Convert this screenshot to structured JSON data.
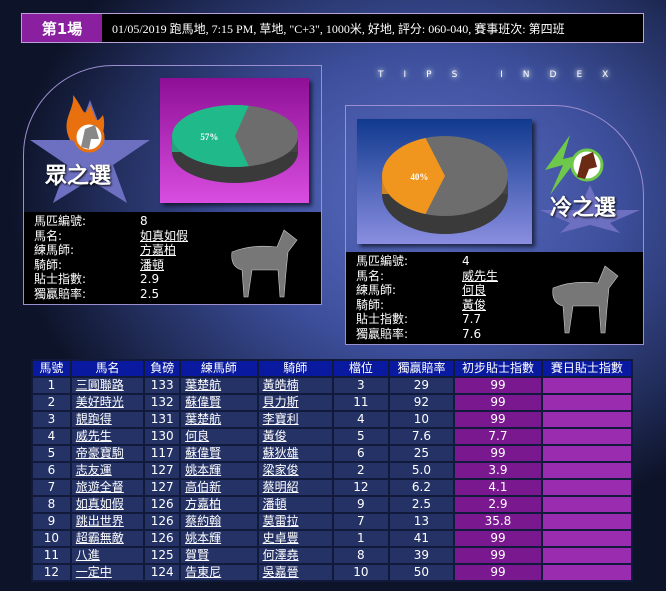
{
  "header": {
    "race": "第1場",
    "info": "01/05/2019 跑馬地, 7:15 PM, 草地, \"C+3\", 1000米, 好地, 評分: 060-040, 賽事班次: 第四班"
  },
  "tips_index": "TIPS INDEX",
  "public_pick": {
    "title": "眾之選",
    "percent_label": "57%",
    "percent": 57,
    "slice_color": "#1fb98a",
    "fields": [
      {
        "k": "馬匹編號:",
        "v": "8"
      },
      {
        "k": "馬名:",
        "v": "如真如假"
      },
      {
        "k": "練馬師:",
        "v": "方嘉柏"
      },
      {
        "k": "騎師:",
        "v": "潘頓"
      },
      {
        "k": "貼士指數:",
        "v": "2.9"
      },
      {
        "k": "獨贏賠率:",
        "v": "2.5"
      }
    ]
  },
  "longshot_pick": {
    "title": "冷之選",
    "percent_label": "40%",
    "percent": 40,
    "slice_color": "#f0961e",
    "fields": [
      {
        "k": "馬匹編號:",
        "v": "4"
      },
      {
        "k": "馬名:",
        "v": "威先生"
      },
      {
        "k": "練馬師:",
        "v": "何良"
      },
      {
        "k": "騎師:",
        "v": "黃俊"
      },
      {
        "k": "貼士指數:",
        "v": "7.7"
      },
      {
        "k": "獨贏賠率:",
        "v": "7.6"
      }
    ]
  },
  "table": {
    "headers": [
      "馬號",
      "馬名",
      "負磅",
      "練馬師",
      "騎師",
      "檔位",
      "獨贏賠率",
      "初步貼士指數",
      "賽日貼士指數"
    ],
    "rows": [
      [
        "1",
        "三圓聯路",
        "133",
        "葉楚航",
        "黃皓楠",
        "3",
        "29",
        "99",
        ""
      ],
      [
        "2",
        "美好時光",
        "132",
        "蘇偉賢",
        "貝力斯",
        "11",
        "92",
        "99",
        ""
      ],
      [
        "3",
        "靚跑得",
        "131",
        "葉楚航",
        "李寶利",
        "4",
        "10",
        "99",
        ""
      ],
      [
        "4",
        "威先生",
        "130",
        "何良",
        "黃俊",
        "5",
        "7.6",
        "7.7",
        ""
      ],
      [
        "5",
        "帝豪寶駒",
        "117",
        "蘇偉賢",
        "蘇狄雄",
        "6",
        "25",
        "99",
        ""
      ],
      [
        "6",
        "志友運",
        "127",
        "姚本輝",
        "梁家俊",
        "2",
        "5.0",
        "3.9",
        ""
      ],
      [
        "7",
        "旅遊全督",
        "127",
        "高伯新",
        "蔡明紹",
        "12",
        "6.2",
        "4.1",
        ""
      ],
      [
        "8",
        "如真如假",
        "126",
        "方嘉柏",
        "潘頓",
        "9",
        "2.5",
        "2.9",
        ""
      ],
      [
        "9",
        "跳出世界",
        "126",
        "蔡約翰",
        "莫雷拉",
        "7",
        "13",
        "35.8",
        ""
      ],
      [
        "10",
        "超霸無敵",
        "126",
        "姚本輝",
        "史卓豐",
        "1",
        "41",
        "99",
        ""
      ],
      [
        "11",
        "八進",
        "125",
        "賀賢",
        "何澤堯",
        "8",
        "39",
        "99",
        ""
      ],
      [
        "12",
        "一定中",
        "124",
        "告東尼",
        "吳嘉晉",
        "10",
        "50",
        "99",
        ""
      ]
    ]
  }
}
